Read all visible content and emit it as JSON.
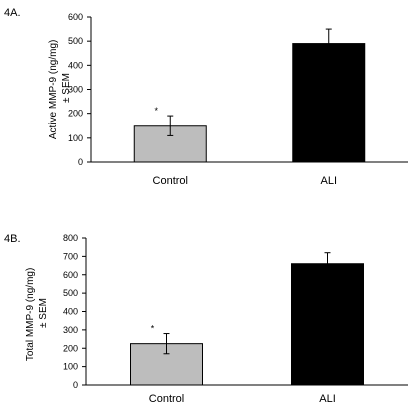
{
  "chart_data": [
    {
      "type": "bar",
      "panel_label": "4A.",
      "ylabel_line1": "Active MMP-9 (ng/mg)",
      "ylabel_line2": "± SEM",
      "xlabel": "",
      "ylim": [
        0,
        600
      ],
      "yticks": [
        0,
        100,
        200,
        300,
        400,
        500,
        600
      ],
      "categories": [
        "Control",
        "ALI"
      ],
      "values": [
        150,
        490
      ],
      "errors": [
        40,
        60
      ],
      "significance": [
        "*",
        ""
      ],
      "colors": [
        "#bdbdbd",
        "#000000"
      ],
      "grid": false,
      "legend": "none"
    },
    {
      "type": "bar",
      "panel_label": "4B.",
      "ylabel_line1": "Total MMP-9 (ng/mg)",
      "ylabel_line2": "± SEM",
      "xlabel": "",
      "ylim": [
        0,
        800
      ],
      "yticks": [
        0,
        100,
        200,
        300,
        400,
        500,
        600,
        700,
        800
      ],
      "categories": [
        "Control",
        "ALI"
      ],
      "values": [
        225,
        660
      ],
      "errors": [
        55,
        60
      ],
      "significance": [
        "*",
        ""
      ],
      "colors": [
        "#bdbdbd",
        "#000000"
      ],
      "grid": false,
      "legend": "none"
    }
  ]
}
